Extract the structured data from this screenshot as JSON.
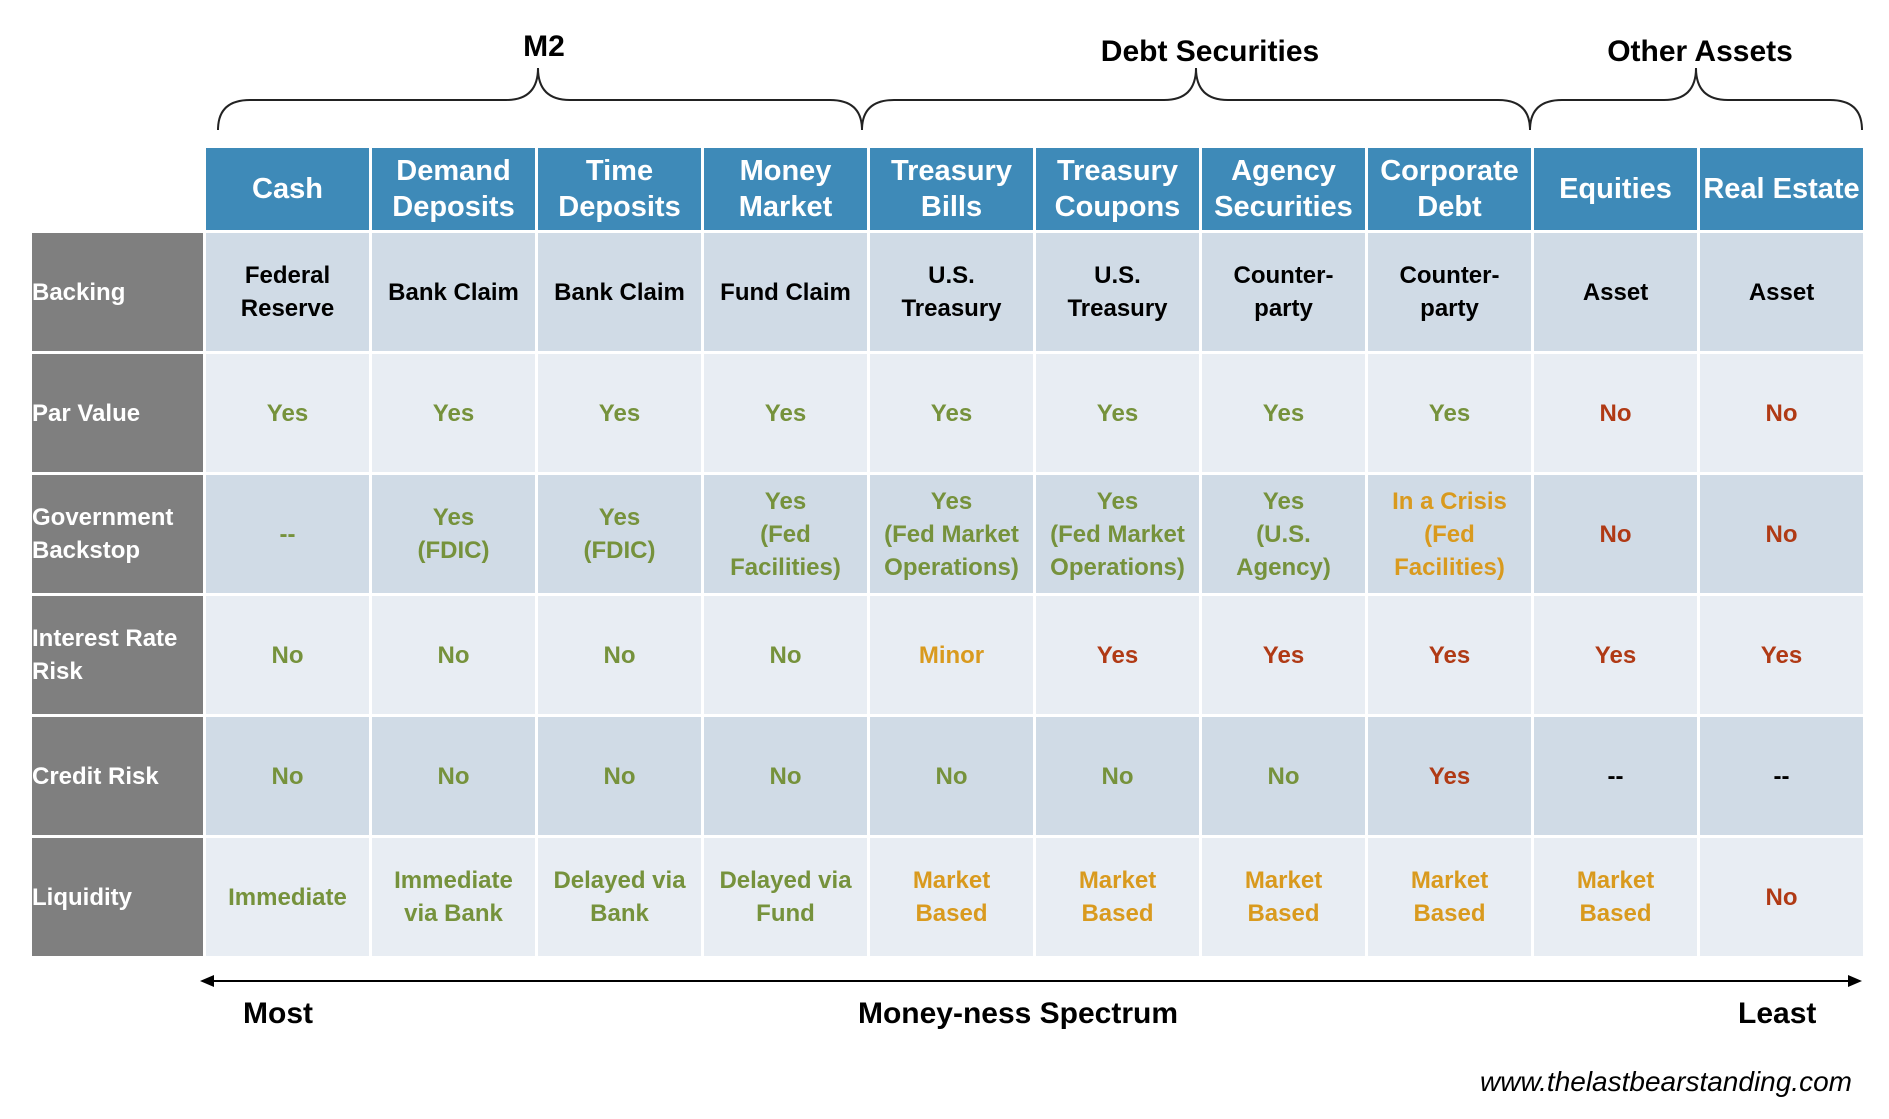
{
  "groups": [
    {
      "label": "M2"
    },
    {
      "label": "Debt Securities"
    },
    {
      "label": "Other Assets"
    }
  ],
  "columns": [
    "Cash",
    "Demand\nDeposits",
    "Time\nDeposits",
    "Money\nMarket",
    "Treasury\nBills",
    "Treasury\nCoupons",
    "Agency\nSecurities",
    "Corporate\nDebt",
    "Equities",
    "Real Estate"
  ],
  "colors": {
    "green": "#76923c",
    "orange": "#d99a1e",
    "red": "#b03a15",
    "black": "#000000",
    "header_blue": "#3e8ab8",
    "label_gray": "#7f7f7f"
  },
  "rows": [
    {
      "label": "Backing",
      "cells": [
        {
          "text": "Federal\nReserve",
          "tone": "black"
        },
        {
          "text": "Bank Claim",
          "tone": "black"
        },
        {
          "text": "Bank Claim",
          "tone": "black"
        },
        {
          "text": "Fund Claim",
          "tone": "black"
        },
        {
          "text": "U.S.\nTreasury",
          "tone": "black"
        },
        {
          "text": "U.S.\nTreasury",
          "tone": "black"
        },
        {
          "text": "Counter-\nparty",
          "tone": "black"
        },
        {
          "text": "Counter-\nparty",
          "tone": "black"
        },
        {
          "text": "Asset",
          "tone": "black"
        },
        {
          "text": "Asset",
          "tone": "black"
        }
      ]
    },
    {
      "label": "Par Value",
      "cells": [
        {
          "text": "Yes",
          "tone": "green"
        },
        {
          "text": "Yes",
          "tone": "green"
        },
        {
          "text": "Yes",
          "tone": "green"
        },
        {
          "text": "Yes",
          "tone": "green"
        },
        {
          "text": "Yes",
          "tone": "green"
        },
        {
          "text": "Yes",
          "tone": "green"
        },
        {
          "text": "Yes",
          "tone": "green"
        },
        {
          "text": "Yes",
          "tone": "green"
        },
        {
          "text": "No",
          "tone": "red"
        },
        {
          "text": "No",
          "tone": "red"
        }
      ]
    },
    {
      "label": "Government\nBackstop",
      "cells": [
        {
          "text": "--",
          "tone": "green"
        },
        {
          "text": "Yes\n(FDIC)",
          "tone": "green"
        },
        {
          "text": "Yes\n(FDIC)",
          "tone": "green"
        },
        {
          "text": "Yes\n(Fed\nFacilities)",
          "tone": "green"
        },
        {
          "text": "Yes\n(Fed Market\nOperations)",
          "tone": "green"
        },
        {
          "text": "Yes\n(Fed Market\nOperations)",
          "tone": "green"
        },
        {
          "text": "Yes\n(U.S.\nAgency)",
          "tone": "green"
        },
        {
          "text": "In a Crisis\n(Fed\nFacilities)",
          "tone": "orange"
        },
        {
          "text": "No",
          "tone": "red"
        },
        {
          "text": "No",
          "tone": "red"
        }
      ]
    },
    {
      "label": "Interest Rate\nRisk",
      "cells": [
        {
          "text": "No",
          "tone": "green"
        },
        {
          "text": "No",
          "tone": "green"
        },
        {
          "text": "No",
          "tone": "green"
        },
        {
          "text": "No",
          "tone": "green"
        },
        {
          "text": "Minor",
          "tone": "orange"
        },
        {
          "text": "Yes",
          "tone": "red"
        },
        {
          "text": "Yes",
          "tone": "red"
        },
        {
          "text": "Yes",
          "tone": "red"
        },
        {
          "text": "Yes",
          "tone": "red"
        },
        {
          "text": "Yes",
          "tone": "red"
        }
      ]
    },
    {
      "label": "Credit Risk",
      "cells": [
        {
          "text": "No",
          "tone": "green"
        },
        {
          "text": "No",
          "tone": "green"
        },
        {
          "text": "No",
          "tone": "green"
        },
        {
          "text": "No",
          "tone": "green"
        },
        {
          "text": "No",
          "tone": "green"
        },
        {
          "text": "No",
          "tone": "green"
        },
        {
          "text": "No",
          "tone": "green"
        },
        {
          "text": "Yes",
          "tone": "red"
        },
        {
          "text": "--",
          "tone": "black"
        },
        {
          "text": "--",
          "tone": "black"
        }
      ]
    },
    {
      "label": "Liquidity",
      "cells": [
        {
          "text": "Immediate",
          "tone": "green"
        },
        {
          "text": "Immediate\nvia Bank",
          "tone": "green"
        },
        {
          "text": "Delayed via\nBank",
          "tone": "green"
        },
        {
          "text": "Delayed via\nFund",
          "tone": "green"
        },
        {
          "text": "Market\nBased",
          "tone": "orange"
        },
        {
          "text": "Market\nBased",
          "tone": "orange"
        },
        {
          "text": "Market\nBased",
          "tone": "orange"
        },
        {
          "text": "Market\nBased",
          "tone": "orange"
        },
        {
          "text": "Market\nBased",
          "tone": "orange"
        },
        {
          "text": "No",
          "tone": "red"
        }
      ]
    }
  ],
  "spectrum": {
    "left": "Most",
    "center": "Money-ness Spectrum",
    "right": "Least"
  },
  "website": "www.thelastbearstanding.com"
}
